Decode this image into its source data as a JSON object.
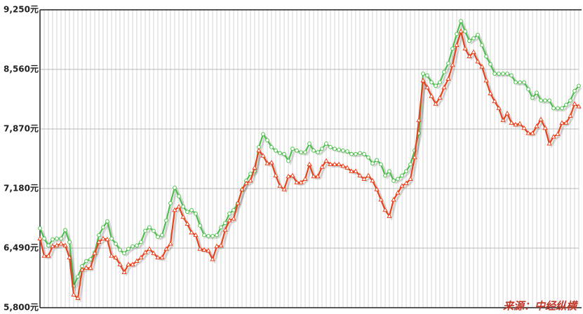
{
  "chart_data": {
    "type": "line",
    "categories": [
      null,
      null,
      null,
      null,
      null,
      null,
      null,
      null,
      null,
      null,
      null,
      null,
      null,
      null,
      null,
      null,
      null,
      null,
      null,
      null,
      null,
      null,
      null,
      null,
      null,
      null,
      null,
      null,
      null,
      null,
      null,
      null,
      null,
      null,
      null,
      null,
      null,
      null,
      null,
      null,
      null,
      null,
      null,
      null,
      null,
      null,
      null,
      null,
      null,
      null,
      null,
      null,
      null,
      null,
      null,
      null,
      null,
      null,
      null,
      null,
      null,
      null,
      null,
      null,
      null,
      null,
      null,
      null,
      null,
      null,
      null,
      null,
      null,
      null,
      null,
      null,
      null,
      null,
      null,
      null,
      null,
      null,
      null,
      null,
      null,
      null,
      null,
      null,
      null,
      null,
      null,
      null,
      null,
      null,
      null,
      null,
      null,
      null,
      null,
      null,
      null,
      null,
      null,
      null,
      null,
      null,
      null,
      null,
      null,
      null,
      null,
      null,
      null,
      null,
      null,
      null,
      null,
      null,
      null,
      null,
      null,
      null,
      null,
      null,
      null,
      null,
      null,
      null,
      null
    ],
    "series": [
      {
        "color": "#4fc04f",
        "marker": "circle",
        "values": [
          6720,
          6600,
          6520,
          6590,
          6600,
          6600,
          6700,
          6560,
          6050,
          6160,
          6280,
          6340,
          6360,
          6440,
          6640,
          6730,
          6800,
          6600,
          6540,
          6470,
          6430,
          6480,
          6510,
          6520,
          6560,
          6690,
          6730,
          6690,
          6620,
          6640,
          6810,
          7010,
          7190,
          7090,
          6970,
          6910,
          6930,
          6890,
          6750,
          6640,
          6630,
          6630,
          6640,
          6730,
          6780,
          6890,
          6930,
          7010,
          7160,
          7270,
          7350,
          7380,
          7660,
          7810,
          7740,
          7660,
          7620,
          7590,
          7580,
          7500,
          7640,
          7620,
          7600,
          7600,
          7700,
          7620,
          7600,
          7640,
          7700,
          7660,
          7640,
          7630,
          7620,
          7610,
          7580,
          7580,
          7590,
          7580,
          7540,
          7470,
          7510,
          7460,
          7330,
          7380,
          7270,
          7290,
          7330,
          7380,
          7460,
          7620,
          7820,
          8510,
          8490,
          8410,
          8370,
          8410,
          8530,
          8630,
          8800,
          8970,
          9120,
          9000,
          8890,
          8920,
          8960,
          8840,
          8710,
          8620,
          8510,
          8510,
          8510,
          8510,
          8490,
          8410,
          8410,
          8410,
          8330,
          8230,
          8290,
          8200,
          8200,
          8200,
          8110,
          8110,
          8110,
          8150,
          8200,
          8310,
          8370
        ]
      },
      {
        "color": "#e8431c",
        "marker": "triangle",
        "values": [
          6600,
          6400,
          6400,
          6510,
          6520,
          6540,
          6520,
          6380,
          5950,
          5910,
          6240,
          6260,
          6260,
          6430,
          6560,
          6600,
          6590,
          6400,
          6380,
          6300,
          6210,
          6300,
          6300,
          6340,
          6380,
          6440,
          6480,
          6430,
          6380,
          6380,
          6480,
          6540,
          6930,
          6970,
          6850,
          6770,
          6670,
          6640,
          6480,
          6470,
          6460,
          6360,
          6510,
          6520,
          6700,
          6810,
          6830,
          7010,
          7170,
          7240,
          7270,
          7420,
          7620,
          7560,
          7470,
          7480,
          7330,
          7210,
          7170,
          7320,
          7330,
          7250,
          7250,
          7290,
          7460,
          7320,
          7320,
          7430,
          7500,
          7460,
          7460,
          7460,
          7440,
          7420,
          7380,
          7380,
          7330,
          7290,
          7330,
          7270,
          7170,
          7050,
          6930,
          6860,
          7050,
          7130,
          7210,
          7240,
          7290,
          7540,
          7970,
          8430,
          8350,
          8250,
          8160,
          8230,
          8350,
          8450,
          8610,
          8840,
          9000,
          8800,
          8710,
          8760,
          8650,
          8590,
          8430,
          8280,
          8190,
          8110,
          7970,
          8050,
          7940,
          7920,
          7930,
          7880,
          7820,
          7820,
          7900,
          7980,
          7880,
          7700,
          7780,
          7810,
          7940,
          7940,
          8020,
          8160,
          8130
        ]
      }
    ],
    "ylim": [
      5800,
      9250
    ],
    "yticks": [
      {
        "value": 5800,
        "label": "5,800元"
      },
      {
        "value": 6490,
        "label": "6,490元"
      },
      {
        "value": 7180,
        "label": "7,180元"
      },
      {
        "value": 7870,
        "label": "7,870元"
      },
      {
        "value": 8560,
        "label": "8,560元"
      },
      {
        "value": 9250,
        "label": "9,250元"
      }
    ],
    "grid": true,
    "source": "来源：中经纵横"
  }
}
